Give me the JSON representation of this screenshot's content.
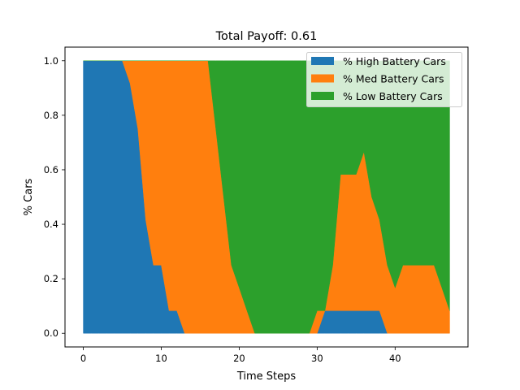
{
  "chart_data": {
    "type": "area",
    "stacked": true,
    "title": "Total Payoff: 0.61",
    "xlabel": "Time Steps",
    "ylabel": "% Cars",
    "xlim": [
      -2.35,
      49.35
    ],
    "ylim": [
      -0.05,
      1.05
    ],
    "xticks": [
      0,
      10,
      20,
      30,
      40
    ],
    "yticks": [
      0.0,
      0.2,
      0.4,
      0.6,
      0.8,
      1.0
    ],
    "xtick_labels": [
      "0",
      "10",
      "20",
      "30",
      "40"
    ],
    "ytick_labels": [
      "0.0",
      "0.2",
      "0.4",
      "0.6",
      "0.8",
      "1.0"
    ],
    "grid": false,
    "legend_position": "top-right",
    "x": [
      0,
      1,
      2,
      3,
      4,
      5,
      6,
      7,
      8,
      9,
      10,
      11,
      12,
      13,
      14,
      15,
      16,
      17,
      18,
      19,
      20,
      21,
      22,
      23,
      24,
      25,
      26,
      27,
      28,
      29,
      30,
      31,
      32,
      33,
      34,
      35,
      36,
      37,
      38,
      39,
      40,
      41,
      42,
      43,
      44,
      45,
      46,
      47
    ],
    "series": [
      {
        "name": "% High Battery Cars",
        "color": "#1f77b4",
        "values": [
          1,
          1,
          1,
          1,
          1,
          1,
          0.917,
          0.75,
          0.417,
          0.25,
          0.25,
          0.083,
          0.083,
          0,
          0,
          0,
          0,
          0,
          0,
          0,
          0,
          0,
          0,
          0,
          0,
          0,
          0,
          0,
          0,
          0,
          0,
          0.083,
          0.083,
          0.083,
          0.083,
          0.083,
          0.083,
          0.083,
          0.083,
          0,
          0,
          0,
          0,
          0,
          0,
          0,
          0,
          0
        ]
      },
      {
        "name": "% Med Battery Cars",
        "color": "#ff7f0e",
        "values": [
          0,
          0,
          0,
          0,
          0,
          0,
          0.083,
          0.25,
          0.583,
          0.75,
          0.75,
          0.917,
          0.917,
          1,
          1,
          1,
          1,
          0.75,
          0.5,
          0.25,
          0.167,
          0.083,
          0,
          0,
          0,
          0,
          0,
          0,
          0,
          0,
          0.083,
          0,
          0.167,
          0.5,
          0.5,
          0.5,
          0.583,
          0.417,
          0.333,
          0.25,
          0.167,
          0.25,
          0.25,
          0.25,
          0.25,
          0.25,
          0.167,
          0.083
        ]
      },
      {
        "name": "% Low Battery Cars",
        "color": "#2ca02c",
        "values": [
          0,
          0,
          0,
          0,
          0,
          0,
          0,
          0,
          0,
          0,
          0,
          0,
          0,
          0,
          0,
          0,
          0,
          0.25,
          0.5,
          0.75,
          0.833,
          0.917,
          1,
          1,
          1,
          1,
          1,
          1,
          1,
          1,
          0.917,
          0.917,
          0.75,
          0.417,
          0.417,
          0.417,
          0.333,
          0.5,
          0.583,
          0.75,
          0.833,
          0.75,
          0.75,
          0.75,
          0.75,
          0.75,
          0.833,
          0.917
        ]
      }
    ]
  }
}
